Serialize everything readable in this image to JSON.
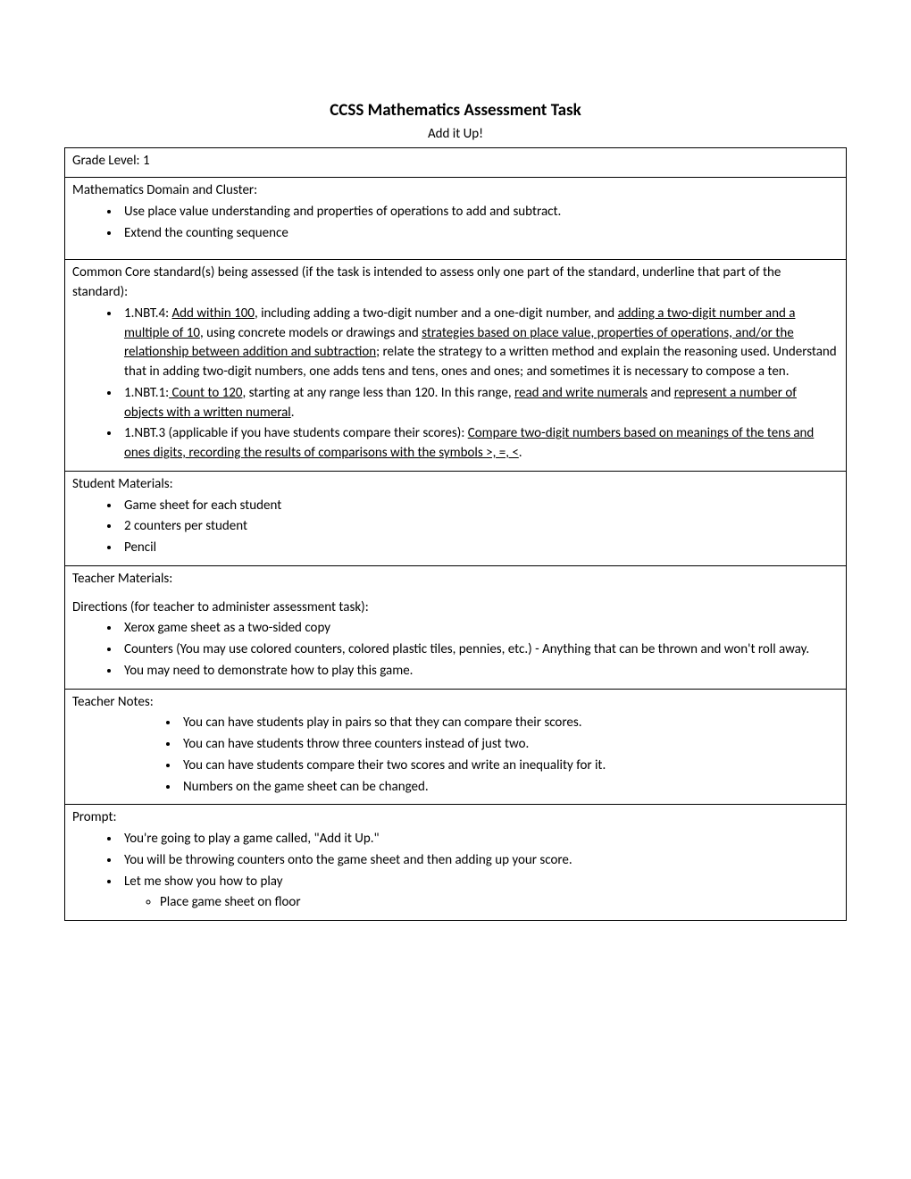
{
  "header": {
    "title": "CCSS Mathematics Assessment Task",
    "subtitle": "Add it Up!"
  },
  "grade": {
    "label": "Grade Level:  1"
  },
  "domain": {
    "label": "Mathematics Domain and Cluster:",
    "items": [
      "Use place value understanding and properties of operations to add and subtract.",
      "Extend the counting sequence"
    ]
  },
  "standards": {
    "label": "Common Core standard(s) being assessed (if the task is intended to assess only one part of the standard, underline that part of the standard):",
    "items": [
      {
        "pre": "1.NBT.4: ",
        "u1": "Add within 100",
        "mid1": ", including adding a two-digit number and a one-digit number, and ",
        "u2": "adding a two-digit number and a multiple of 10",
        "mid2": ", using concrete models or drawings and ",
        "u3": "strategies based on place value, properties of operations, and/or the relationship between addition and subtraction",
        "post": "; relate the strategy to a written method and explain the reasoning used.  Understand that in adding two-digit numbers, one adds tens and tens, ones and ones; and sometimes it is necessary to compose a ten."
      },
      {
        "pre": "1.NBT.1:",
        "u1": " Count to 120",
        "mid1": ", starting at any range less than 120. In this range, ",
        "u2": "read and write numerals",
        "mid2": " and ",
        "u3": "represent a number of objects with a written numeral",
        "post": "."
      },
      {
        "pre": "1.NBT.3 (applicable if you have students compare their scores): ",
        "u1": "Compare two-digit numbers based on meanings of the tens and ones digits, recording the results of comparisons with the symbols >, =, <",
        "post": "."
      }
    ]
  },
  "studentMaterials": {
    "label": "Student Materials:",
    "items": [
      "Game sheet for each student",
      "2 counters per student",
      "Pencil"
    ]
  },
  "teacherMaterials": {
    "label": "Teacher Materials:",
    "directionsLabel": "Directions (for teacher to administer assessment task):",
    "items": [
      "Xerox game sheet as a two-sided copy",
      "Counters (You may use colored counters, colored plastic tiles, pennies, etc.) - Anything that can be thrown and won't roll away.",
      "You may need to demonstrate how to play this game."
    ]
  },
  "teacherNotes": {
    "label": "Teacher Notes:",
    "items": [
      "You can have students play in pairs so that they can compare their scores.",
      "You can have students throw three counters instead of just two.",
      "You can have students compare their two scores and write an inequality for it.",
      "Numbers on the game sheet can be changed."
    ]
  },
  "prompt": {
    "label": "Prompt:",
    "items": [
      "You're going to play a game called, \"Add it Up.\"",
      "You will be throwing counters onto the game sheet and then adding up your score.",
      "Let me show you how to play"
    ],
    "sub": [
      "Place game sheet on floor"
    ]
  }
}
